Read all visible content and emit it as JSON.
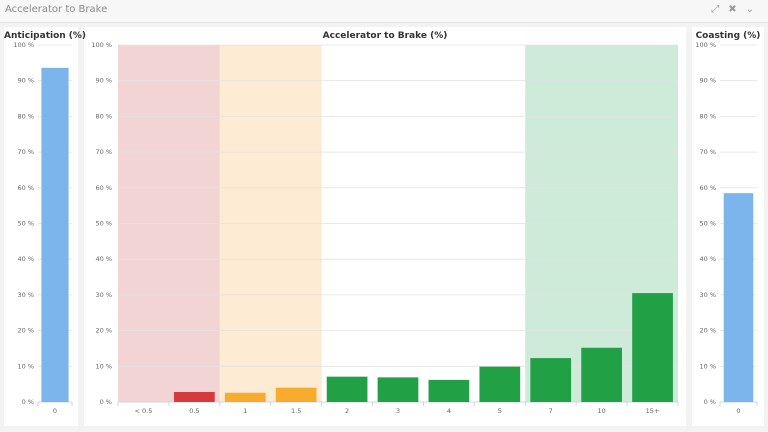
{
  "header": {
    "title": "Accelerator to Brake",
    "icons": [
      "expand-icon",
      "close-icon",
      "chevron-down-icon"
    ]
  },
  "chart_data": [
    {
      "type": "bar",
      "title": "Anticipation (%)",
      "categories": [
        "0"
      ],
      "values": [
        93.6
      ],
      "ylim": [
        0,
        100
      ],
      "yticks": [
        "0 %",
        "10 %",
        "20 %",
        "30 %",
        "40 %",
        "50 %",
        "60 %",
        "70 %",
        "80 %",
        "90 %",
        "100 %"
      ],
      "grid": true,
      "bar_color": "#7cb5ec"
    },
    {
      "type": "bar",
      "title": "Accelerator to Brake (%)",
      "categories": [
        "< 0.5",
        "0.5",
        "1",
        "1.5",
        "2",
        "3",
        "4",
        "5",
        "7",
        "10",
        "15+"
      ],
      "values": [
        0,
        2.8,
        2.6,
        4.0,
        7.1,
        6.9,
        6.2,
        9.9,
        12.3,
        15.2,
        30.5
      ],
      "bar_colors": [
        "#d63a3a",
        "#d63a3a",
        "#f7ac2e",
        "#f7ac2e",
        "#21a045",
        "#21a045",
        "#21a045",
        "#21a045",
        "#21a045",
        "#21a045",
        "#21a045"
      ],
      "bands": [
        {
          "from": "< 0.5",
          "to": "0.5",
          "color": "#f2d4d4"
        },
        {
          "from": "1",
          "to": "1.5",
          "color": "#fdebd3"
        },
        {
          "from": "7",
          "to": "15+",
          "color": "#cdebd8"
        }
      ],
      "ylim": [
        0,
        100
      ],
      "yticks": [
        "0 %",
        "10 %",
        "20 %",
        "30 %",
        "40 %",
        "50 %",
        "60 %",
        "70 %",
        "80 %",
        "90 %",
        "100 %"
      ],
      "grid": true
    },
    {
      "type": "bar",
      "title": "Coasting (%)",
      "categories": [
        "0"
      ],
      "values": [
        58.5
      ],
      "ylim": [
        0,
        100
      ],
      "yticks": [
        "0 %",
        "10 %",
        "20 %",
        "30 %",
        "40 %",
        "50 %",
        "60 %",
        "70 %",
        "80 %",
        "90 %",
        "100 %"
      ],
      "grid": true,
      "bar_color": "#7cb5ec"
    }
  ]
}
